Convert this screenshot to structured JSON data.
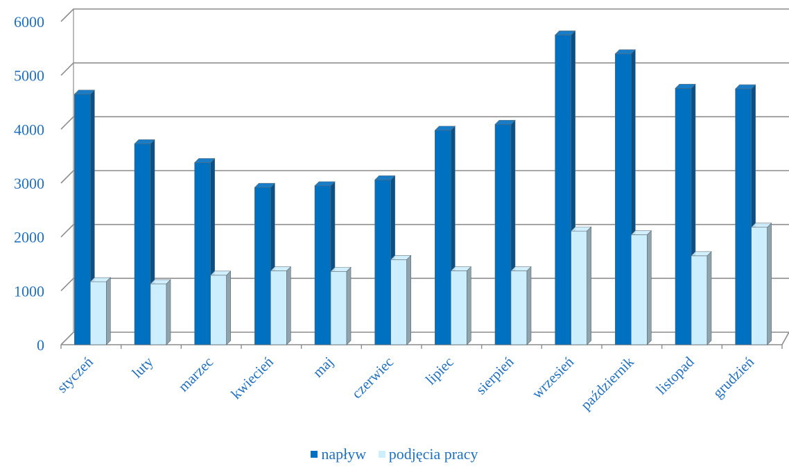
{
  "chart_data": {
    "type": "bar",
    "categories": [
      "styczeń",
      "luty",
      "marzec",
      "kwiecień",
      "maj",
      "czerwiec",
      "lipiec",
      "sierpień",
      "wrzesień",
      "październik",
      "listopad",
      "grudzień"
    ],
    "series": [
      {
        "name": "napływ",
        "values": [
          4650,
          3730,
          3380,
          2920,
          2950,
          3060,
          3980,
          4090,
          5750,
          5400,
          4760,
          4750
        ]
      },
      {
        "name": "podjęcia pracy",
        "values": [
          1170,
          1130,
          1290,
          1370,
          1360,
          1580,
          1370,
          1370,
          2110,
          2040,
          1650,
          2180
        ]
      }
    ],
    "yticks": [
      "0",
      "1000",
      "2000",
      "3000",
      "4000",
      "5000",
      "6000"
    ],
    "ylim": [
      0,
      6000
    ],
    "grid": true,
    "legend_position": "bottom",
    "colors": {
      "napływ": "#0070c0",
      "napływ_side": "#0a4f86",
      "podjęcia pracy": "#cdeefc",
      "podjęcia pracy_side": "#8fa3ad",
      "gridline": "#8c8c8c",
      "text": "#1f6fc0"
    }
  }
}
